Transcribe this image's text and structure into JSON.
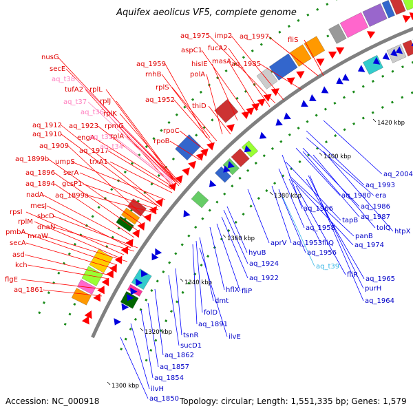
{
  "title": "Aquifex aeolicus VF5, complete genome",
  "footer": {
    "accession": "Accession: NC_000918",
    "summary": "Topology: circular; Length: 1,551,335 bp; Genes: 1,579"
  },
  "colors": {
    "forward_label": "#e00000",
    "reverse_label": "#0000c8",
    "rna_label_forward": "#ff7fbf",
    "rna_label_reverse": "#33b5e5",
    "backbone": "#8c8c8c"
  },
  "kbp_labels": [
    "1300 kbp",
    "1320 kbp",
    "1340 kbp",
    "1360 kbp",
    "1380 kbp",
    "1400 kbp",
    "1420 kbp"
  ],
  "forward_labels": [
    {
      "text": "aq_1975",
      "color": "red"
    },
    {
      "text": "imp2",
      "color": "red"
    },
    {
      "text": "aq_1997",
      "color": "red"
    },
    {
      "text": "fucA2",
      "color": "red"
    },
    {
      "text": "fliS",
      "color": "red"
    },
    {
      "text": "aspC1",
      "color": "red"
    },
    {
      "text": "masA",
      "color": "red"
    },
    {
      "text": "hisIE",
      "color": "red"
    },
    {
      "text": "aq_1985",
      "color": "red"
    },
    {
      "text": "aq_1959",
      "color": "red"
    },
    {
      "text": "polA",
      "color": "red"
    },
    {
      "text": "rnhB",
      "color": "red"
    },
    {
      "text": "nusG",
      "color": "red"
    },
    {
      "text": "secE",
      "color": "red"
    },
    {
      "text": "aq_t38",
      "color": "pink"
    },
    {
      "text": "rplS",
      "color": "red"
    },
    {
      "text": "aq_1952",
      "color": "red"
    },
    {
      "text": "tufA2",
      "color": "red"
    },
    {
      "text": "rplL",
      "color": "red"
    },
    {
      "text": "rplJ",
      "color": "red"
    },
    {
      "text": "aq_t37",
      "color": "pink"
    },
    {
      "text": "thiD",
      "color": "red"
    },
    {
      "text": "aq_t36",
      "color": "pink"
    },
    {
      "text": "rplK",
      "color": "red"
    },
    {
      "text": "aq_1912",
      "color": "red"
    },
    {
      "text": "aq_1923",
      "color": "red"
    },
    {
      "text": "rpmG",
      "color": "red"
    },
    {
      "text": "rpoC",
      "color": "red"
    },
    {
      "text": "aq_1910",
      "color": "red"
    },
    {
      "text": "engA",
      "color": "red"
    },
    {
      "text": "aq_t35",
      "color": "pink"
    },
    {
      "text": "rplA",
      "color": "red"
    },
    {
      "text": "rpoB",
      "color": "red"
    },
    {
      "text": "aq_1909",
      "color": "red"
    },
    {
      "text": "aq_1917",
      "color": "red"
    },
    {
      "text": "aq_t34",
      "color": "pink"
    },
    {
      "text": "aq_1899b",
      "color": "red"
    },
    {
      "text": "umpS",
      "color": "red"
    },
    {
      "text": "trxA1",
      "color": "red"
    },
    {
      "text": "aq_1896",
      "color": "red"
    },
    {
      "text": "serA",
      "color": "red"
    },
    {
      "text": "aq_1894",
      "color": "red"
    },
    {
      "text": "gcsP1",
      "color": "red"
    },
    {
      "text": "nadA",
      "color": "red"
    },
    {
      "text": "aq_1899a",
      "color": "red"
    },
    {
      "text": "mesJ",
      "color": "red"
    },
    {
      "text": "rpsI",
      "color": "red"
    },
    {
      "text": "sbcD",
      "color": "red"
    },
    {
      "text": "rplM",
      "color": "red"
    },
    {
      "text": "dnaN",
      "color": "red"
    },
    {
      "text": "pmbA",
      "color": "red"
    },
    {
      "text": "mraW",
      "color": "red"
    },
    {
      "text": "secA",
      "color": "red"
    },
    {
      "text": "asd",
      "color": "red"
    },
    {
      "text": "kch",
      "color": "red"
    },
    {
      "text": "flgE",
      "color": "red"
    },
    {
      "text": "aq_1861",
      "color": "red"
    }
  ],
  "reverse_labels": [
    {
      "text": "aq_2004",
      "color": "blue"
    },
    {
      "text": "aq_1993",
      "color": "blue"
    },
    {
      "text": "aq_1980",
      "color": "blue"
    },
    {
      "text": "era",
      "color": "blue"
    },
    {
      "text": "aq_1966",
      "color": "blue"
    },
    {
      "text": "aq_1986",
      "color": "blue"
    },
    {
      "text": "tapB",
      "color": "blue"
    },
    {
      "text": "aq_1987",
      "color": "blue"
    },
    {
      "text": "aq_1958",
      "color": "blue"
    },
    {
      "text": "tolQ",
      "color": "blue"
    },
    {
      "text": "htpX",
      "color": "blue"
    },
    {
      "text": "panB",
      "color": "blue"
    },
    {
      "text": "aprV",
      "color": "blue"
    },
    {
      "text": "aq_1953",
      "color": "blue"
    },
    {
      "text": "fliQ",
      "color": "blue"
    },
    {
      "text": "aq_1974",
      "color": "blue"
    },
    {
      "text": "hyuB",
      "color": "blue"
    },
    {
      "text": "aq_1956",
      "color": "blue"
    },
    {
      "text": "aq_1924",
      "color": "blue"
    },
    {
      "text": "aq_t39",
      "color": "cyan"
    },
    {
      "text": "fliR",
      "color": "blue"
    },
    {
      "text": "aq_1965",
      "color": "blue"
    },
    {
      "text": "aq_1922",
      "color": "blue"
    },
    {
      "text": "purH",
      "color": "blue"
    },
    {
      "text": "hflX",
      "color": "blue"
    },
    {
      "text": "fliP",
      "color": "blue"
    },
    {
      "text": "aq_1964",
      "color": "blue"
    },
    {
      "text": "dmt",
      "color": "blue"
    },
    {
      "text": "folD",
      "color": "blue"
    },
    {
      "text": "aq_1891",
      "color": "blue"
    },
    {
      "text": "tsnR",
      "color": "blue"
    },
    {
      "text": "ilvE",
      "color": "blue"
    },
    {
      "text": "sucD1",
      "color": "blue"
    },
    {
      "text": "aq_1862",
      "color": "blue"
    },
    {
      "text": "aq_1857",
      "color": "blue"
    },
    {
      "text": "aq_1854",
      "color": "blue"
    },
    {
      "text": "ilvH",
      "color": "blue"
    },
    {
      "text": "aq_1850",
      "color": "blue"
    }
  ]
}
